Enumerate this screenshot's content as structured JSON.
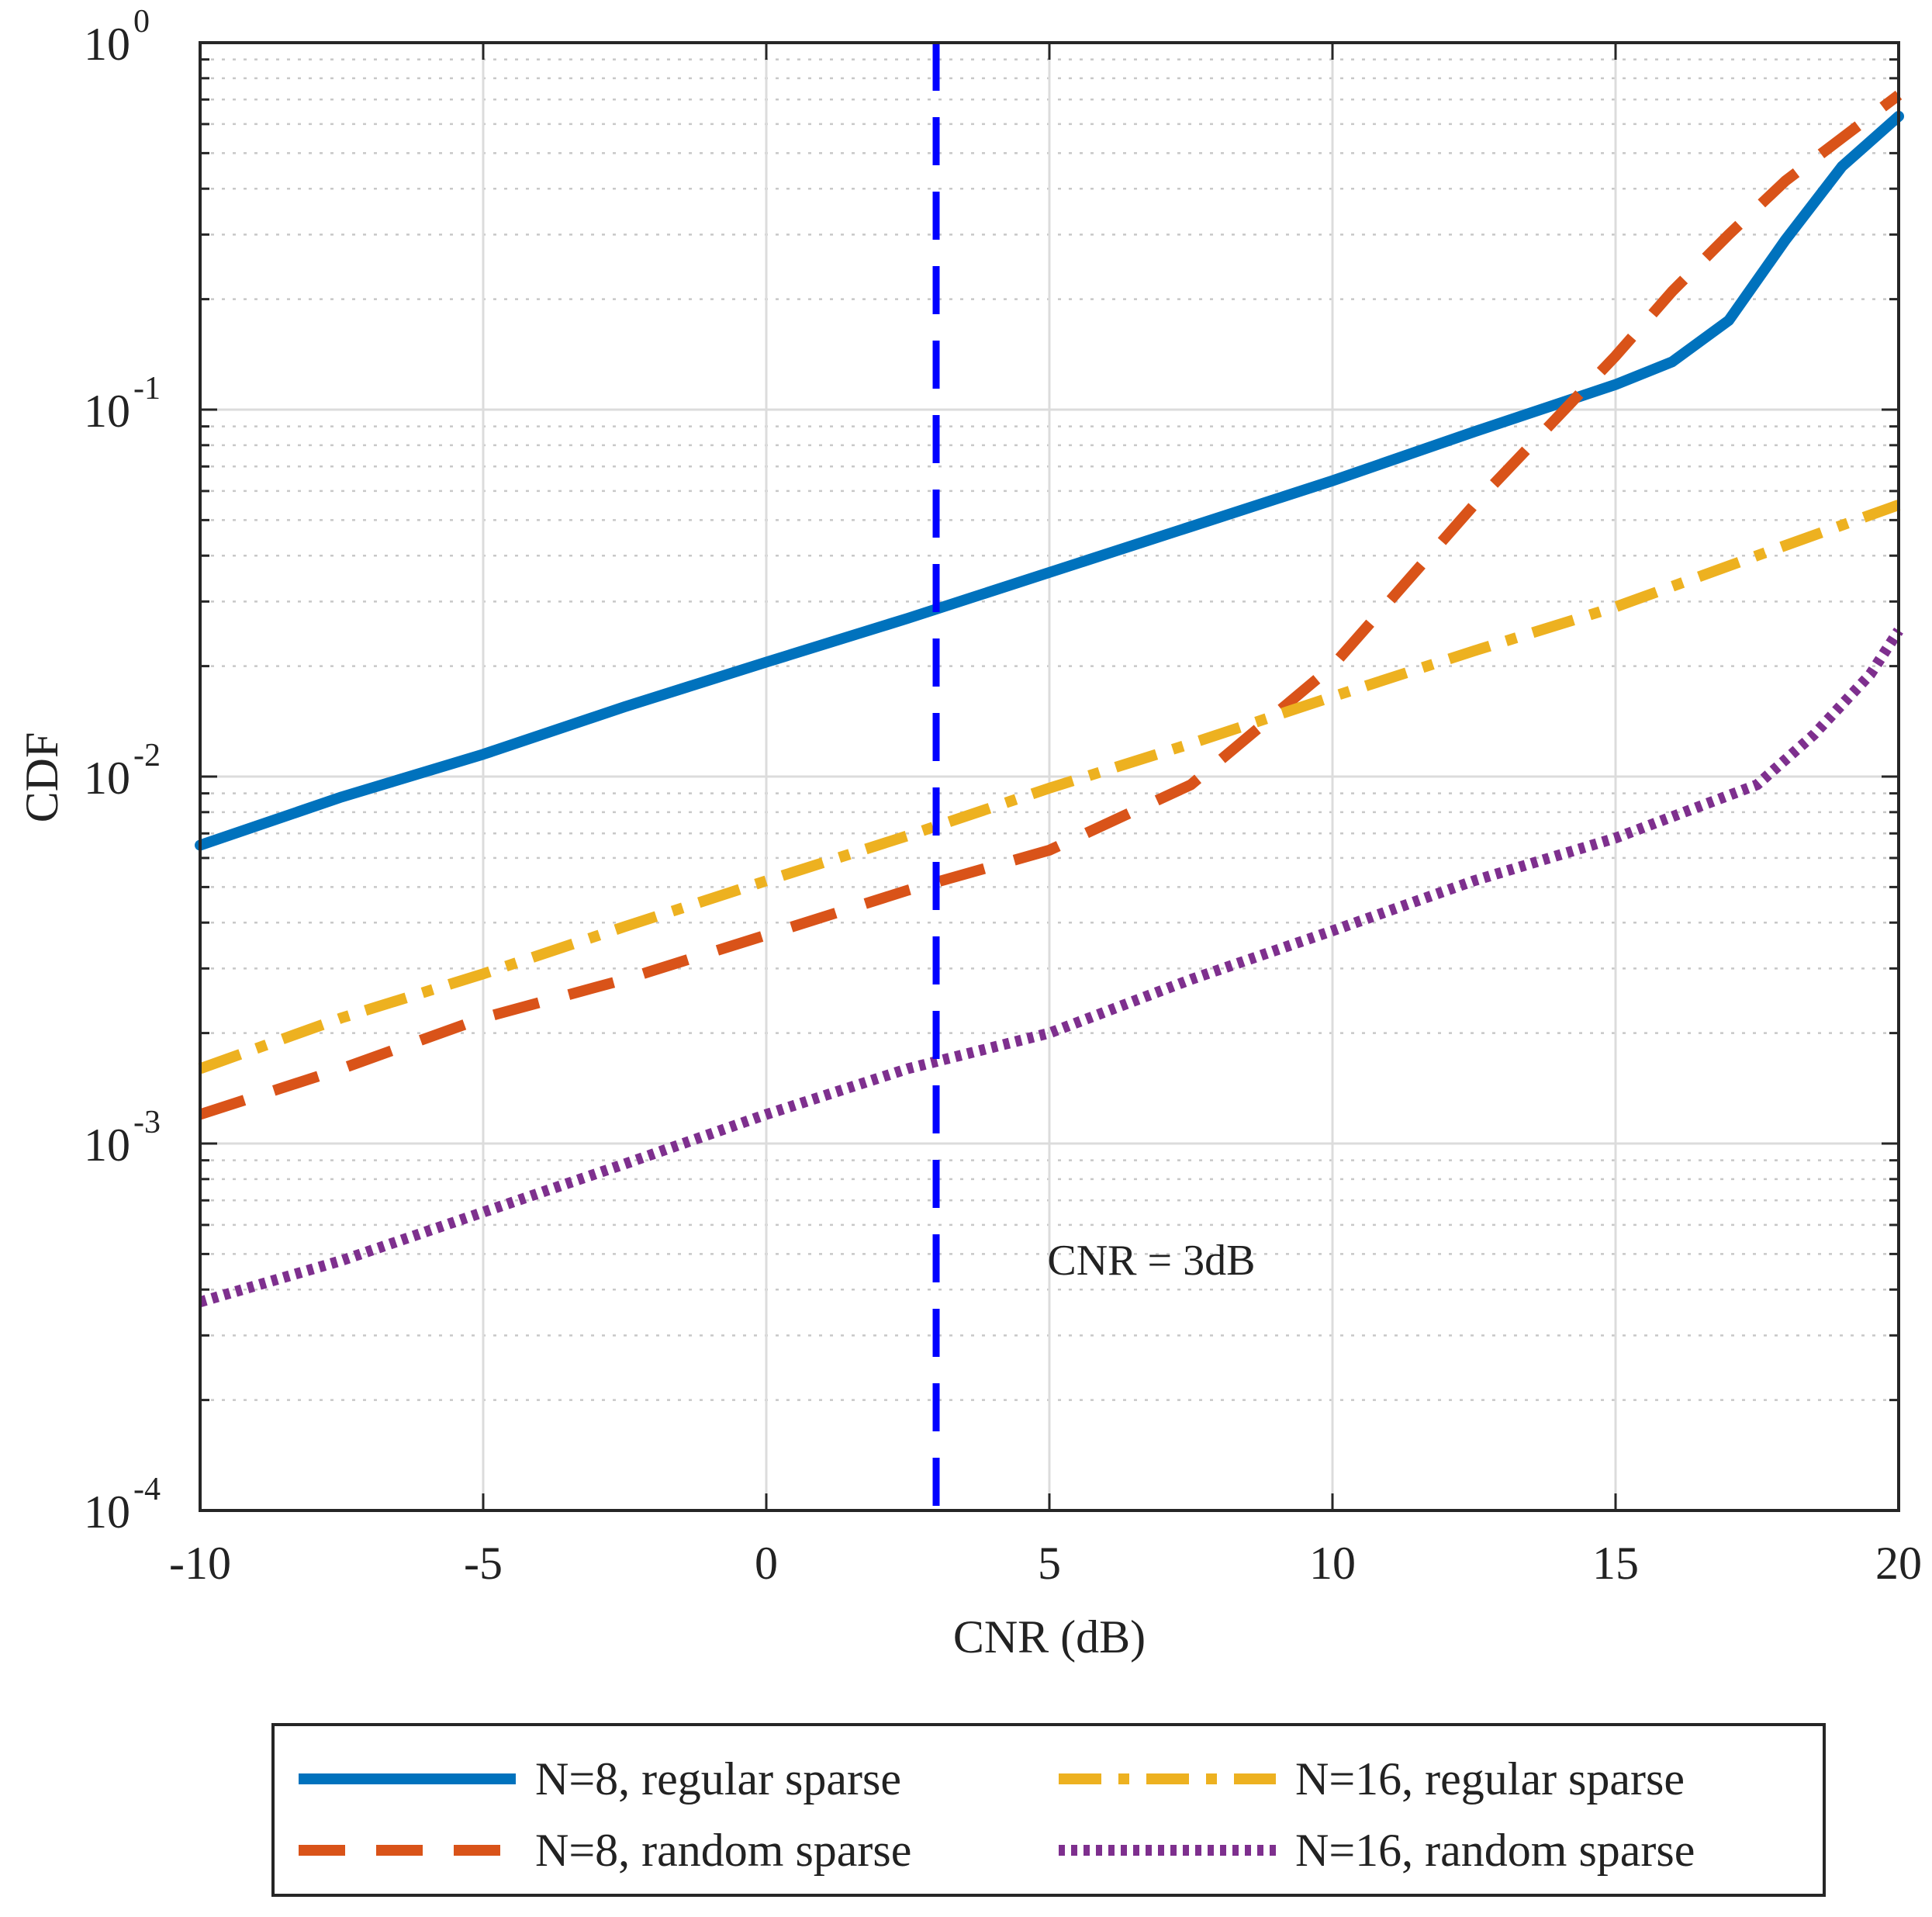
{
  "chart_data": {
    "type": "line",
    "xlabel": "CNR (dB)",
    "ylabel": "CDF",
    "xscale": "linear",
    "yscale": "log",
    "xlim": [
      -10,
      20
    ],
    "ylim": [
      0.0001,
      1
    ],
    "xticks": [
      -10,
      -5,
      0,
      5,
      10,
      15,
      20
    ],
    "xtick_labels": [
      "-10",
      "-5",
      "0",
      "5",
      "10",
      "15",
      "20"
    ],
    "yticks": [
      {
        "base": "10",
        "exp": "-4",
        "value": 0.0001
      },
      {
        "base": "10",
        "exp": "-3",
        "value": 0.001
      },
      {
        "base": "10",
        "exp": "-2",
        "value": 0.01
      },
      {
        "base": "10",
        "exp": "-1",
        "value": 0.1
      },
      {
        "base": "10",
        "exp": "0",
        "value": 1
      }
    ],
    "grid": true,
    "legend_position": "bottom",
    "series": [
      {
        "name": "N=8, regular sparse",
        "color": "#0072BD",
        "style": "solid",
        "x": [
          -10,
          -7.5,
          -5,
          -2.5,
          0,
          2.5,
          5,
          7.5,
          10,
          12.5,
          15,
          16,
          17,
          18,
          19,
          20
        ],
        "y": [
          0.0065,
          0.0088,
          0.0115,
          0.0155,
          0.0205,
          0.027,
          0.036,
          0.048,
          0.064,
          0.087,
          0.117,
          0.135,
          0.175,
          0.29,
          0.46,
          0.63
        ]
      },
      {
        "name": "N=8, random sparse",
        "color": "#D95319",
        "style": "dashed",
        "x": [
          -10,
          -7.5,
          -5,
          -2.5,
          0,
          2.5,
          5,
          7.5,
          10,
          12.5,
          15,
          16,
          17,
          18,
          19,
          20
        ],
        "y": [
          0.0012,
          0.0016,
          0.0022,
          0.0028,
          0.0037,
          0.0049,
          0.0063,
          0.0095,
          0.02,
          0.055,
          0.14,
          0.21,
          0.3,
          0.42,
          0.55,
          0.72
        ]
      },
      {
        "name": "N=16, regular sparse",
        "color": "#EDB120",
        "style": "dashdot",
        "x": [
          -10,
          -7.5,
          -5,
          -2.5,
          0,
          2.5,
          5,
          7.5,
          10,
          12.5,
          15,
          17.5,
          20
        ],
        "y": [
          0.0016,
          0.0022,
          0.0029,
          0.0039,
          0.0052,
          0.0069,
          0.0093,
          0.0123,
          0.0165,
          0.022,
          0.029,
          0.04,
          0.055
        ]
      },
      {
        "name": "N=16, random sparse",
        "color": "#7E2F8E",
        "style": "dotted",
        "x": [
          -10,
          -7.5,
          -5,
          -2.5,
          0,
          2.5,
          5,
          7.5,
          10,
          12.5,
          15,
          17.5,
          18.5,
          19.5,
          20
        ],
        "y": [
          0.00037,
          0.00048,
          0.00065,
          0.00088,
          0.0012,
          0.0016,
          0.002,
          0.0028,
          0.0038,
          0.0052,
          0.0068,
          0.0095,
          0.013,
          0.019,
          0.025
        ]
      }
    ],
    "reference_line": {
      "x": 3,
      "color": "#0000FF",
      "style": "dashed"
    },
    "annotation": {
      "text": "CNR = 3dB",
      "x": 6.8,
      "y": 0.00048,
      "color": "#0000FF"
    }
  }
}
